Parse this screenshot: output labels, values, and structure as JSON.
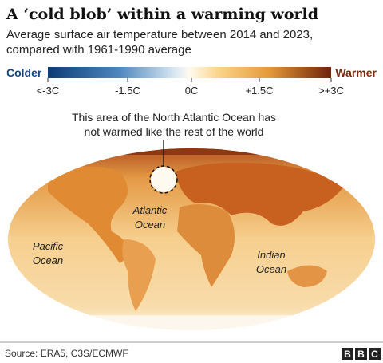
{
  "header": {
    "title": "A ‘cold blob’ within a warming world",
    "subtitle": [
      "Average surface air temperature between 2014 and 2023,",
      "compared with 1961-1990 average"
    ]
  },
  "legend": {
    "colder": "Colder",
    "warmer": "Warmer",
    "ticks": [
      "<-3C",
      "-1.5C",
      "0C",
      "+1.5C",
      ">+3C"
    ]
  },
  "annotation": [
    "This area of the North Atlantic Ocean has",
    "not warmed like the rest of the world"
  ],
  "map_labels": {
    "atlantic": [
      "Atlantic",
      "Ocean"
    ],
    "pacific": [
      "Pacific",
      "Ocean"
    ],
    "indian": [
      "Indian",
      "Ocean"
    ]
  },
  "footer": {
    "source": "Source: ERA5, C3S/ECMWF",
    "logo": [
      "B",
      "B",
      "C"
    ]
  }
}
